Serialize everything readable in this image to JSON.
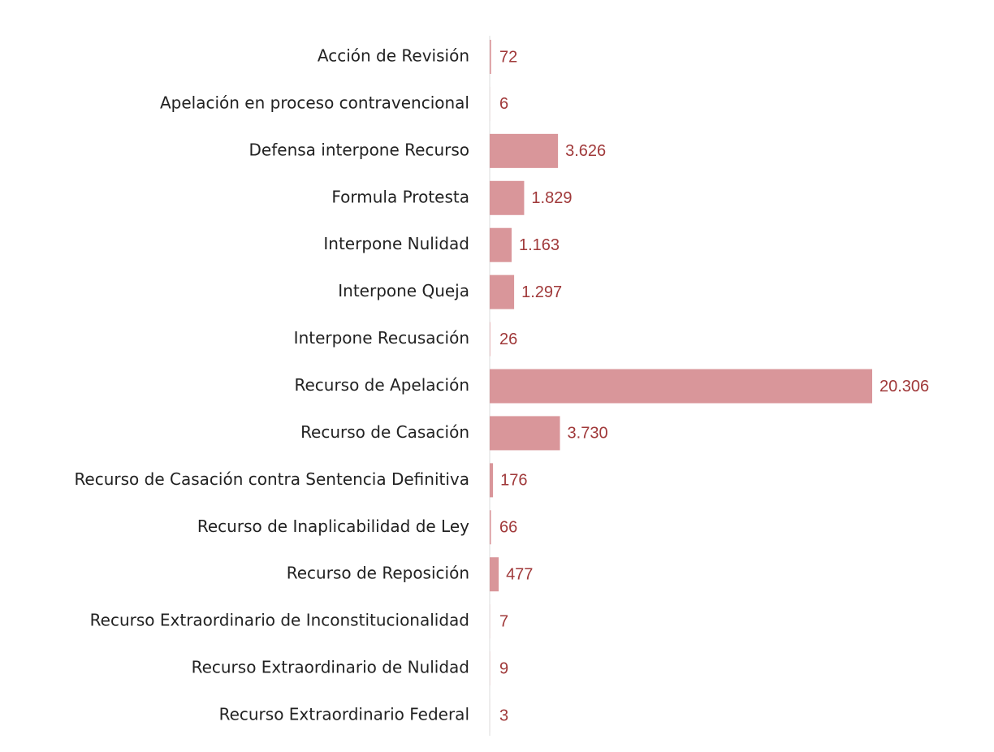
{
  "chart_data": {
    "type": "bar",
    "orientation": "horizontal",
    "color": "#d9969a",
    "categories": [
      "Acción de Revisión",
      "Apelación en proceso contravencional",
      "Defensa interpone Recurso",
      "Formula Protesta",
      "Interpone Nulidad",
      "Interpone Queja",
      "Interpone Recusación",
      "Recurso de Apelación",
      "Recurso de Casación",
      "Recurso de Casación contra Sentencia Definitiva",
      "Recurso de Inaplicabilidad de Ley",
      "Recurso de Reposición",
      "Recurso Extraordinario de Inconstitucionalidad",
      "Recurso Extraordinario de Nulidad",
      "Recurso Extraordinario Federal"
    ],
    "values": [
      72,
      6,
      3626,
      1829,
      1163,
      1297,
      26,
      20306,
      3730,
      176,
      66,
      477,
      7,
      9,
      3
    ],
    "value_labels": [
      "72",
      "6",
      "3.626",
      "1.829",
      "1.163",
      "1.297",
      "26",
      "20.306",
      "3.730",
      "176",
      "66",
      "477",
      "7",
      "9",
      "3"
    ]
  }
}
